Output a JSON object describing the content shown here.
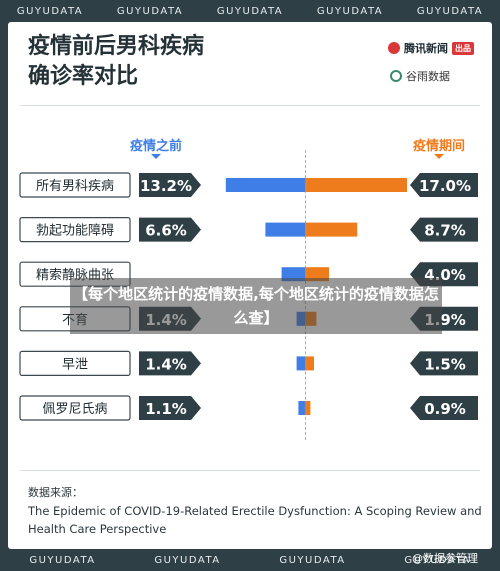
{
  "ticker_text": "GUYUDATA",
  "title_lines": [
    "疫情前后男科疾病",
    "确诊率对比"
  ],
  "brand1": {
    "name": "腾讯新闻",
    "badge": "出品"
  },
  "brand2": {
    "name": "谷雨数据"
  },
  "col_before": "疫情之前",
  "col_during": "疫情期间",
  "colors": {
    "before": "#3e7ee6",
    "during": "#ee7b1c",
    "label_bg": "#2f3f46"
  },
  "chart_data": {
    "type": "bar",
    "categories": [
      "所有男科疾病",
      "勃起功能障碍",
      "精索静脉曲张",
      "不育",
      "早泄",
      "佩罗尼氏病"
    ],
    "series": [
      {
        "name": "疫情之前",
        "values": [
          13.2,
          6.6,
          3.9,
          1.4,
          1.4,
          1.1
        ]
      },
      {
        "name": "疫情期间",
        "values": [
          17.0,
          8.7,
          4.0,
          1.9,
          1.5,
          0.9
        ]
      }
    ],
    "before_labels": [
      "13.2%",
      "6.6%",
      "",
      "1.4%",
      "1.4%",
      "1.1%"
    ],
    "during_labels": [
      "17.0%",
      "8.7%",
      "4.0%",
      "1.9%",
      "1.5%",
      "0.9%"
    ],
    "category_labels": [
      "所有男科疾病",
      "勃起功能障碍",
      "精索静脉曲张",
      "不育",
      "早泄",
      "佩罗尼氏病"
    ]
  },
  "source_title": "数据来源：",
  "source_text": "The Epidemic of COVID-19-Related Erectile Dysfunction: A Scoping Review and Health Care Perspective",
  "overlay_text": "【每个地区统计的疫情数据,每个地区统计的疫情数据怎么查】",
  "watermark": "@数据参管理"
}
